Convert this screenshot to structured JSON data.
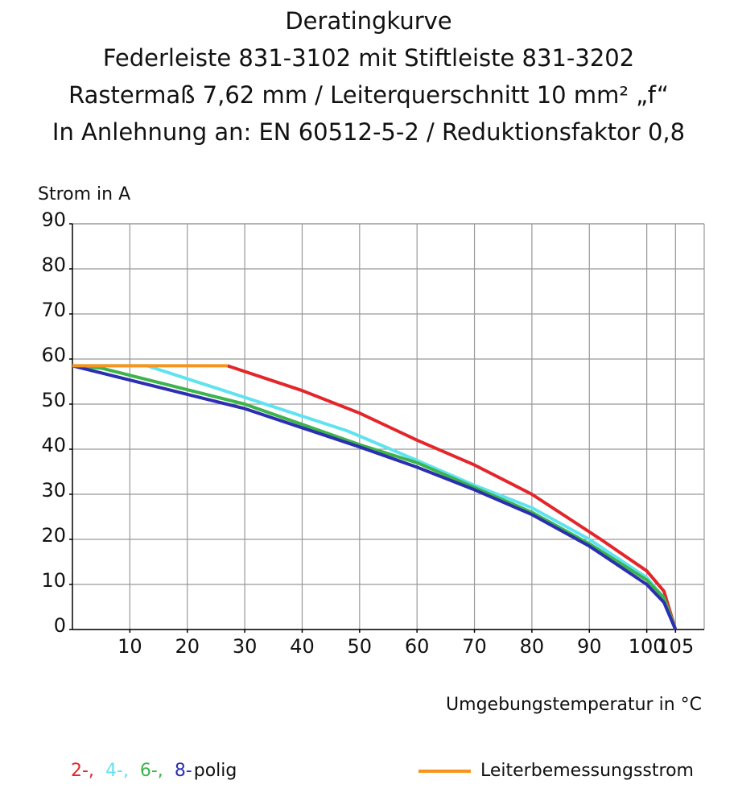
{
  "chart_data": {
    "type": "line",
    "title": [
      "Deratingkurve",
      "Federleiste 831-3102 mit Stiftleiste 831-3202",
      "Rastermaß 7,62 mm / Leiterquerschnitt 10 mm² „f“",
      "In Anlehnung an: EN 60512-5-2 / Reduktionsfaktor 0,8"
    ],
    "y_label": "Strom in A",
    "x_label": "Umgebungstemperatur in °C",
    "xlim": [
      0,
      110
    ],
    "xticks": [
      10,
      20,
      30,
      40,
      50,
      60,
      70,
      80,
      90,
      100,
      105
    ],
    "ylim": [
      0,
      90
    ],
    "yticks": [
      0,
      10,
      20,
      30,
      40,
      50,
      60,
      70,
      80,
      90
    ],
    "grid": true,
    "legend_suffix": "polig",
    "series": [
      {
        "name": "2-,",
        "color": "#e3262a",
        "x": [
          27,
          40,
          50,
          55,
          60,
          70,
          80,
          92,
          100,
          103,
          105
        ],
        "values": [
          58.5,
          53,
          48,
          45,
          42,
          36.5,
          30,
          20,
          13,
          8.5,
          0
        ]
      },
      {
        "name": "4-,",
        "color": "#5fe3f0",
        "x": [
          0,
          13,
          30,
          48,
          60,
          70,
          80,
          90,
          100,
          103,
          105
        ],
        "values": [
          58.5,
          58.5,
          51.5,
          44,
          37.5,
          32,
          27,
          20,
          11.5,
          7,
          0
        ]
      },
      {
        "name": "6-,",
        "color": "#3cb44b",
        "x": [
          0,
          5,
          30,
          50,
          60,
          70,
          80,
          90,
          100,
          103,
          105
        ],
        "values": [
          58.5,
          58,
          50,
          41,
          37,
          31.5,
          26,
          19,
          11,
          7,
          0
        ]
      },
      {
        "name": "8-",
        "color": "#2b2fb0",
        "x": [
          0,
          30,
          50,
          60,
          70,
          80,
          90,
          100,
          103,
          105
        ],
        "values": [
          58.5,
          49,
          40.5,
          36,
          31,
          25.5,
          18.5,
          10,
          6,
          0
        ]
      },
      {
        "name": "Leiterbemessungsstrom",
        "color": "#f7941d",
        "x": [
          0,
          27
        ],
        "values": [
          58.5,
          58.5
        ]
      }
    ]
  }
}
